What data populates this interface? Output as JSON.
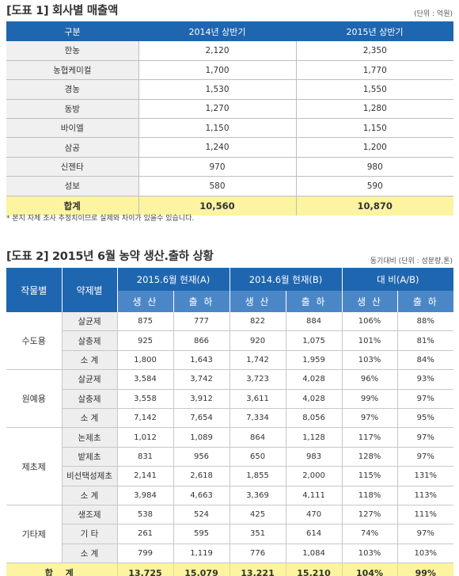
{
  "table1": {
    "title": "[도표 1] 회사별 매출액",
    "unit": "(단위 : 억원)",
    "headers": [
      "구분",
      "2014년 상반기",
      "2015년 상반기"
    ],
    "rows": [
      {
        "name": "한농",
        "y2014": "2,120",
        "y2015": "2,350"
      },
      {
        "name": "농협케미컬",
        "y2014": "1,700",
        "y2015": "1,770"
      },
      {
        "name": "경농",
        "y2014": "1,530",
        "y2015": "1,550"
      },
      {
        "name": "동방",
        "y2014": "1,270",
        "y2015": "1,280"
      },
      {
        "name": "바이엘",
        "y2014": "1,150",
        "y2015": "1,150"
      },
      {
        "name": "삼공",
        "y2014": "1,240",
        "y2015": "1,200"
      },
      {
        "name": "신젠타",
        "y2014": "970",
        "y2015": "980"
      },
      {
        "name": "성보",
        "y2014": "580",
        "y2015": "590"
      }
    ],
    "total": {
      "name": "합계",
      "y2014": "10,560",
      "y2015": "10,870"
    },
    "note": "* 본지 자체 조사 추정치이므로 실제와 차이가 있을수 있습니다."
  },
  "table2": {
    "title": "[도표 2] 2015년 6월 농약 생산.출하 상황",
    "unit": "동기대비 (단위 : 성분량,톤)",
    "headers": {
      "crop": "작물별",
      "agent": "약제별",
      "current": "2015.6월 현재(A)",
      "previous": "2014.6월 현재(B)",
      "ratio": "대 비(A/B)",
      "production": "생 산",
      "shipment": "출 하"
    },
    "groups": [
      {
        "name": "수도용",
        "rows": [
          {
            "agent": "살균제",
            "a_prod": "875",
            "a_ship": "777",
            "b_prod": "822",
            "b_ship": "884",
            "r_prod": "106%",
            "r_ship": "88%"
          },
          {
            "agent": "살충제",
            "a_prod": "925",
            "a_ship": "866",
            "b_prod": "920",
            "b_ship": "1,075",
            "r_prod": "101%",
            "r_ship": "81%"
          },
          {
            "agent": "소 계",
            "a_prod": "1,800",
            "a_ship": "1,643",
            "b_prod": "1,742",
            "b_ship": "1,959",
            "r_prod": "103%",
            "r_ship": "84%"
          }
        ]
      },
      {
        "name": "원예용",
        "rows": [
          {
            "agent": "살균제",
            "a_prod": "3,584",
            "a_ship": "3,742",
            "b_prod": "3,723",
            "b_ship": "4,028",
            "r_prod": "96%",
            "r_ship": "93%"
          },
          {
            "agent": "살충제",
            "a_prod": "3,558",
            "a_ship": "3,912",
            "b_prod": "3,611",
            "b_ship": "4,028",
            "r_prod": "99%",
            "r_ship": "97%"
          },
          {
            "agent": "소 계",
            "a_prod": "7,142",
            "a_ship": "7,654",
            "b_prod": "7,334",
            "b_ship": "8,056",
            "r_prod": "97%",
            "r_ship": "95%"
          }
        ]
      },
      {
        "name": "제초제",
        "rows": [
          {
            "agent": "논제초",
            "a_prod": "1,012",
            "a_ship": "1,089",
            "b_prod": "864",
            "b_ship": "1,128",
            "r_prod": "117%",
            "r_ship": "97%"
          },
          {
            "agent": "밭제초",
            "a_prod": "831",
            "a_ship": "956",
            "b_prod": "650",
            "b_ship": "983",
            "r_prod": "128%",
            "r_ship": "97%"
          },
          {
            "agent": "비선택성제초",
            "a_prod": "2,141",
            "a_ship": "2,618",
            "b_prod": "1,855",
            "b_ship": "2,000",
            "r_prod": "115%",
            "r_ship": "131%"
          },
          {
            "agent": "소 계",
            "a_prod": "3,984",
            "a_ship": "4,663",
            "b_prod": "3,369",
            "b_ship": "4,111",
            "r_prod": "118%",
            "r_ship": "113%"
          }
        ]
      },
      {
        "name": "기타제",
        "rows": [
          {
            "agent": "생조제",
            "a_prod": "538",
            "a_ship": "524",
            "b_prod": "425",
            "b_ship": "470",
            "r_prod": "127%",
            "r_ship": "111%"
          },
          {
            "agent": "기 타",
            "a_prod": "261",
            "a_ship": "595",
            "b_prod": "351",
            "b_ship": "614",
            "r_prod": "74%",
            "r_ship": "97%"
          },
          {
            "agent": "소 계",
            "a_prod": "799",
            "a_ship": "1,119",
            "b_prod": "776",
            "b_ship": "1,084",
            "r_prod": "103%",
            "r_ship": "103%"
          }
        ]
      }
    ],
    "total": {
      "name": "합 계",
      "a_prod": "13,725",
      "a_ship": "15,079",
      "b_prod": "13,221",
      "b_ship": "15,210",
      "r_prod": "104%",
      "r_ship": "99%"
    }
  }
}
